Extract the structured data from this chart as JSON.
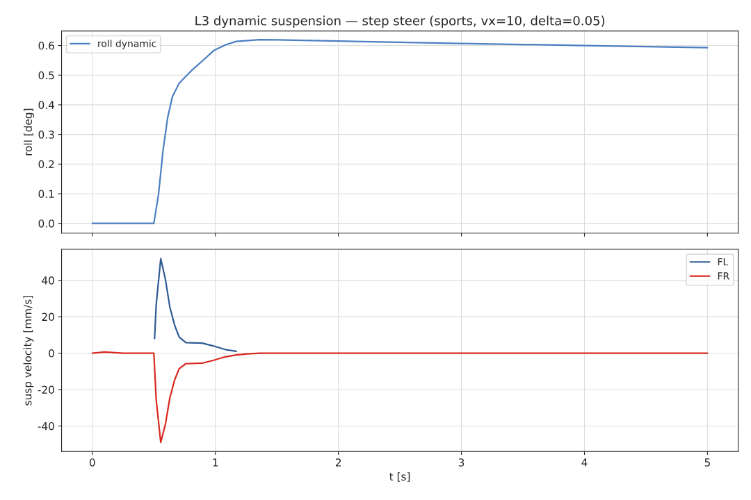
{
  "chart_data": [
    {
      "type": "line",
      "title": "L3 dynamic suspension — step steer (sports, vx=10, delta=0.05)",
      "ylabel": "roll [deg]",
      "xlim": [
        -0.25,
        5.25
      ],
      "xticks": [
        0,
        1,
        2,
        3,
        4,
        5
      ],
      "ylim": [
        -0.033,
        0.649
      ],
      "yticks": [
        {
          "value": 0,
          "label": "0.0"
        },
        0.1,
        0.2,
        0.3,
        0.4,
        0.5,
        0.6
      ],
      "tick_labels": "y",
      "grid": true,
      "legend": "top left",
      "series": [
        {
          "name": "roll dynamic",
          "color": "#4a7fc1",
          "x": [
            0,
            0.25,
            0.5,
            0.538,
            0.575,
            0.612,
            0.65,
            0.706,
            0.8,
            0.894,
            0.987,
            1.08,
            1.17,
            1.36,
            1.5,
            2,
            3,
            4,
            5
          ],
          "values": [
            0,
            0,
            0,
            0.098,
            0.247,
            0.356,
            0.427,
            0.473,
            0.513,
            0.548,
            0.583,
            0.602,
            0.614,
            0.62,
            0.619,
            0.615,
            0.607,
            0.6,
            0.593
          ]
        }
      ]
    },
    {
      "type": "line",
      "xlabel": "t [s]",
      "ylabel": "susp velocity [mm/s]",
      "xlim": [
        -0.25,
        5.25
      ],
      "xticks": [
        0,
        1,
        2,
        3,
        4,
        5
      ],
      "ylim": [
        -54,
        57
      ],
      "yticks": [
        -40,
        -20,
        0,
        20,
        40
      ],
      "grid": true,
      "legend": "top right",
      "series": [
        {
          "name": "FL",
          "color": "#2f5b93",
          "x": [
            0.506,
            0.519,
            0.556,
            0.594,
            0.63,
            0.67,
            0.706,
            0.76,
            0.894,
            0.987,
            1.08,
            1.17
          ],
          "values": [
            8.0,
            26.6,
            51.9,
            40.5,
            25.3,
            15.1,
            8.8,
            5.8,
            5.5,
            3.9,
            2.0,
            1.0
          ]
        },
        {
          "name": "FR",
          "color": "#d9281f",
          "x": [
            0,
            0.1,
            0.25,
            0.5,
            0.519,
            0.556,
            0.594,
            0.63,
            0.67,
            0.706,
            0.76,
            0.894,
            0.987,
            1.08,
            1.17,
            1.26,
            1.36,
            2,
            3,
            4,
            5
          ],
          "values": [
            0,
            0.6,
            0,
            0,
            -25.5,
            -49.0,
            -39.0,
            -24.5,
            -14.5,
            -8.5,
            -5.8,
            -5.5,
            -3.9,
            -2.0,
            -1.0,
            -0.4,
            0,
            0,
            0,
            0,
            0
          ]
        }
      ]
    }
  ]
}
